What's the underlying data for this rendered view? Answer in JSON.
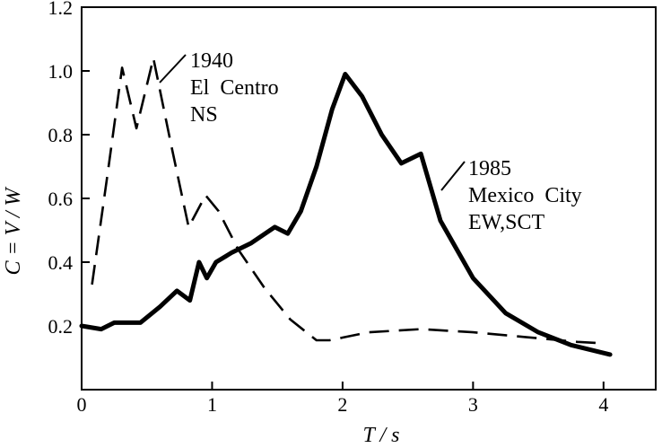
{
  "chart_data": {
    "type": "line",
    "title": "",
    "xlabel": "T / s",
    "ylabel": "C = V / W",
    "xlim": [
      0,
      4.4
    ],
    "ylim": [
      0,
      1.2
    ],
    "x_ticks": [
      0,
      1,
      2,
      3,
      4
    ],
    "y_ticks": [
      0.2,
      0.4,
      0.6,
      0.8,
      1.0,
      1.2
    ],
    "x_tick_labels": [
      "0",
      "1",
      "2",
      "3",
      "4"
    ],
    "y_tick_labels": [
      "0.2",
      "0.4",
      "0.6",
      "0.8",
      "1.0",
      "1.2"
    ],
    "grid": false,
    "legend": "none",
    "series": [
      {
        "name": "1940 El Centro NS",
        "label_lines": [
          "1940",
          "El  Centro",
          "NS"
        ],
        "style": "dashed",
        "x": [
          0.08,
          0.2,
          0.31,
          0.42,
          0.55,
          0.68,
          0.82,
          0.95,
          1.05,
          1.2,
          1.4,
          1.6,
          1.8,
          1.9,
          2.2,
          2.6,
          3.0,
          3.4,
          3.8,
          4.0
        ],
        "y": [
          0.33,
          0.68,
          1.01,
          0.82,
          1.04,
          0.78,
          0.51,
          0.61,
          0.56,
          0.44,
          0.32,
          0.22,
          0.155,
          0.155,
          0.18,
          0.19,
          0.18,
          0.165,
          0.15,
          0.145
        ]
      },
      {
        "name": "1985 Mexico City EW,SCT",
        "label_lines": [
          "1985",
          "Mexico  City",
          "EW,SCT"
        ],
        "style": "solid",
        "x": [
          0.0,
          0.15,
          0.25,
          0.33,
          0.45,
          0.6,
          0.73,
          0.83,
          0.9,
          0.96,
          1.03,
          1.15,
          1.3,
          1.48,
          1.58,
          1.68,
          1.8,
          1.92,
          2.02,
          2.15,
          2.3,
          2.45,
          2.6,
          2.75,
          3.0,
          3.25,
          3.5,
          3.75,
          4.05
        ],
        "y": [
          0.2,
          0.19,
          0.21,
          0.21,
          0.21,
          0.26,
          0.31,
          0.28,
          0.4,
          0.35,
          0.4,
          0.43,
          0.46,
          0.51,
          0.49,
          0.56,
          0.7,
          0.88,
          0.99,
          0.92,
          0.8,
          0.71,
          0.74,
          0.53,
          0.35,
          0.24,
          0.18,
          0.14,
          0.11
        ]
      }
    ]
  }
}
